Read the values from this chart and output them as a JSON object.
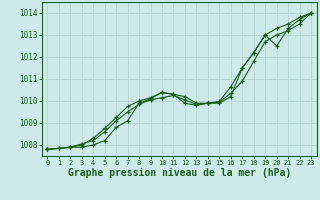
{
  "title": "Graphe pression niveau de la mer (hPa)",
  "bg_color": "#cceae8",
  "grid_color": "#b8d8d5",
  "line_color": "#1a5c1a",
  "xlim": [
    -0.5,
    23.5
  ],
  "ylim": [
    1007.5,
    1014.5
  ],
  "yticks": [
    1008,
    1009,
    1010,
    1011,
    1012,
    1013,
    1014
  ],
  "xticks": [
    0,
    1,
    2,
    3,
    4,
    5,
    6,
    7,
    8,
    9,
    10,
    11,
    12,
    13,
    14,
    15,
    16,
    17,
    18,
    19,
    20,
    21,
    22,
    23
  ],
  "line1_x": [
    0,
    1,
    2,
    3,
    4,
    5,
    6,
    7,
    8,
    9,
    10,
    11,
    12,
    13,
    14,
    15,
    16,
    17,
    18,
    19,
    20,
    21,
    22,
    23
  ],
  "line1_y": [
    1007.8,
    1007.85,
    1007.9,
    1007.9,
    1008.0,
    1008.2,
    1008.8,
    1009.1,
    1009.9,
    1010.1,
    1010.4,
    1010.3,
    1010.2,
    1009.9,
    1009.9,
    1009.9,
    1010.2,
    1011.5,
    1012.2,
    1013.0,
    1012.5,
    1013.3,
    1013.7,
    1014.0
  ],
  "line2_x": [
    0,
    1,
    2,
    3,
    4,
    5,
    6,
    7,
    8,
    9,
    10,
    11,
    12,
    13,
    14,
    15,
    16,
    17,
    18,
    19,
    20,
    21,
    22,
    23
  ],
  "line2_y": [
    1007.8,
    1007.85,
    1007.9,
    1008.05,
    1008.2,
    1008.6,
    1009.1,
    1009.5,
    1009.85,
    1010.05,
    1010.15,
    1010.25,
    1010.05,
    1009.85,
    1009.9,
    1009.95,
    1010.35,
    1010.9,
    1011.8,
    1012.7,
    1013.0,
    1013.2,
    1013.5,
    1014.0
  ],
  "line3_x": [
    0,
    2,
    3,
    4,
    5,
    6,
    7,
    8,
    9,
    10,
    11,
    12,
    13,
    14,
    15,
    16,
    17,
    18,
    19,
    20,
    21,
    22,
    23
  ],
  "line3_y": [
    1007.8,
    1007.9,
    1008.0,
    1008.3,
    1008.75,
    1009.25,
    1009.75,
    1010.0,
    1010.15,
    1010.38,
    1010.3,
    1009.9,
    1009.8,
    1009.9,
    1009.98,
    1010.65,
    1011.5,
    1012.2,
    1013.0,
    1013.3,
    1013.5,
    1013.8,
    1014.0
  ],
  "title_fontsize": 7,
  "tick_fontsize": 5.5,
  "tick_color": "#1a5c1a",
  "axis_color": "#1a5c1a"
}
